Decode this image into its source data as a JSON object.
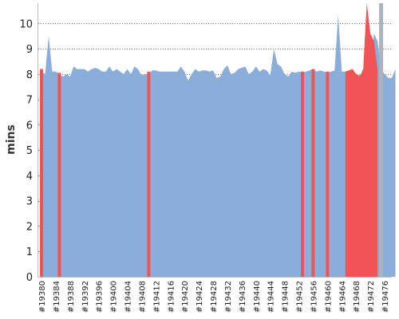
{
  "chart_data": {
    "type": "area",
    "title": "",
    "xlabel": "",
    "ylabel": "mins",
    "ylim": [
      0,
      10.8
    ],
    "yticks": [
      0,
      1,
      2,
      3,
      4,
      5,
      6,
      7,
      8,
      9,
      10
    ],
    "grid": "horizontal dotted",
    "x_first": 19380,
    "x_last": 19478,
    "x_tick_labels": [
      "#19380",
      "#19384",
      "#19388",
      "#19392",
      "#19396",
      "#19400",
      "#19404",
      "#19408",
      "#19412",
      "#19416",
      "#19420",
      "#19424",
      "#19428",
      "#19432",
      "#19436",
      "#19440",
      "#19444",
      "#19448",
      "#19452",
      "#19456",
      "#19460",
      "#19464",
      "#19468",
      "#19472",
      "#19476"
    ],
    "series": [
      {
        "status": "success",
        "values": [
          8.1,
          8.0,
          9.5,
          8.1,
          8.1,
          8.0,
          7.9,
          8.0,
          7.9,
          8.3,
          8.2,
          8.2,
          8.2,
          8.1,
          8.2,
          8.25,
          8.2,
          8.1,
          8.1,
          8.3,
          8.1,
          8.2,
          8.1,
          8.0,
          8.2,
          8.0,
          8.3,
          8.2,
          7.95,
          8.0,
          8.0,
          8.15,
          8.15,
          8.1,
          8.1,
          8.1,
          8.1,
          8.1,
          8.1,
          8.3,
          8.1,
          7.75,
          8.0,
          8.2,
          8.1,
          8.15,
          8.15,
          8.1,
          8.15,
          7.85,
          7.9,
          8.2,
          8.35,
          8.0,
          8.05,
          8.2,
          8.25,
          8.3,
          8.0,
          8.1,
          8.3,
          8.1,
          8.2,
          8.15,
          7.95,
          9.0,
          8.4,
          8.3,
          8.0,
          7.9,
          8.1,
          8.05,
          8.1,
          8.05,
          8.1,
          8.15,
          8.2,
          8.1,
          8.15,
          8.1,
          8.05,
          8.1,
          8.15,
          10.35,
          8.1,
          8.1,
          8.15,
          8.2,
          8.0,
          7.95,
          8.1,
          8.0,
          8.0,
          9.6,
          9.3,
          8.2,
          8.0,
          7.85,
          7.85,
          8.2
        ]
      }
    ],
    "failed_bars": [
      {
        "x": 19380,
        "value": 8.2
      },
      {
        "x": 19385,
        "value": 8.05
      },
      {
        "x": 19410,
        "value": 8.1
      },
      {
        "x": 19453,
        "value": 8.1
      },
      {
        "x": 19456,
        "value": 8.2
      },
      {
        "x": 19460,
        "value": 8.1
      }
    ],
    "failed_areas": [
      {
        "x_from": 19465,
        "x_to": 19474,
        "values": [
          8.1,
          8.15,
          8.2,
          8.0,
          7.9,
          8.2,
          10.8,
          9.6,
          9.3,
          8.2
        ]
      }
    ],
    "aborted_bars": [
      {
        "x": 19475,
        "value": 10.8
      }
    ],
    "colors": {
      "success": "#8aaed9",
      "failed": "#f05454",
      "aborted": "#aab4be",
      "grid": "#666666",
      "axis": "#bbbbbb"
    }
  }
}
